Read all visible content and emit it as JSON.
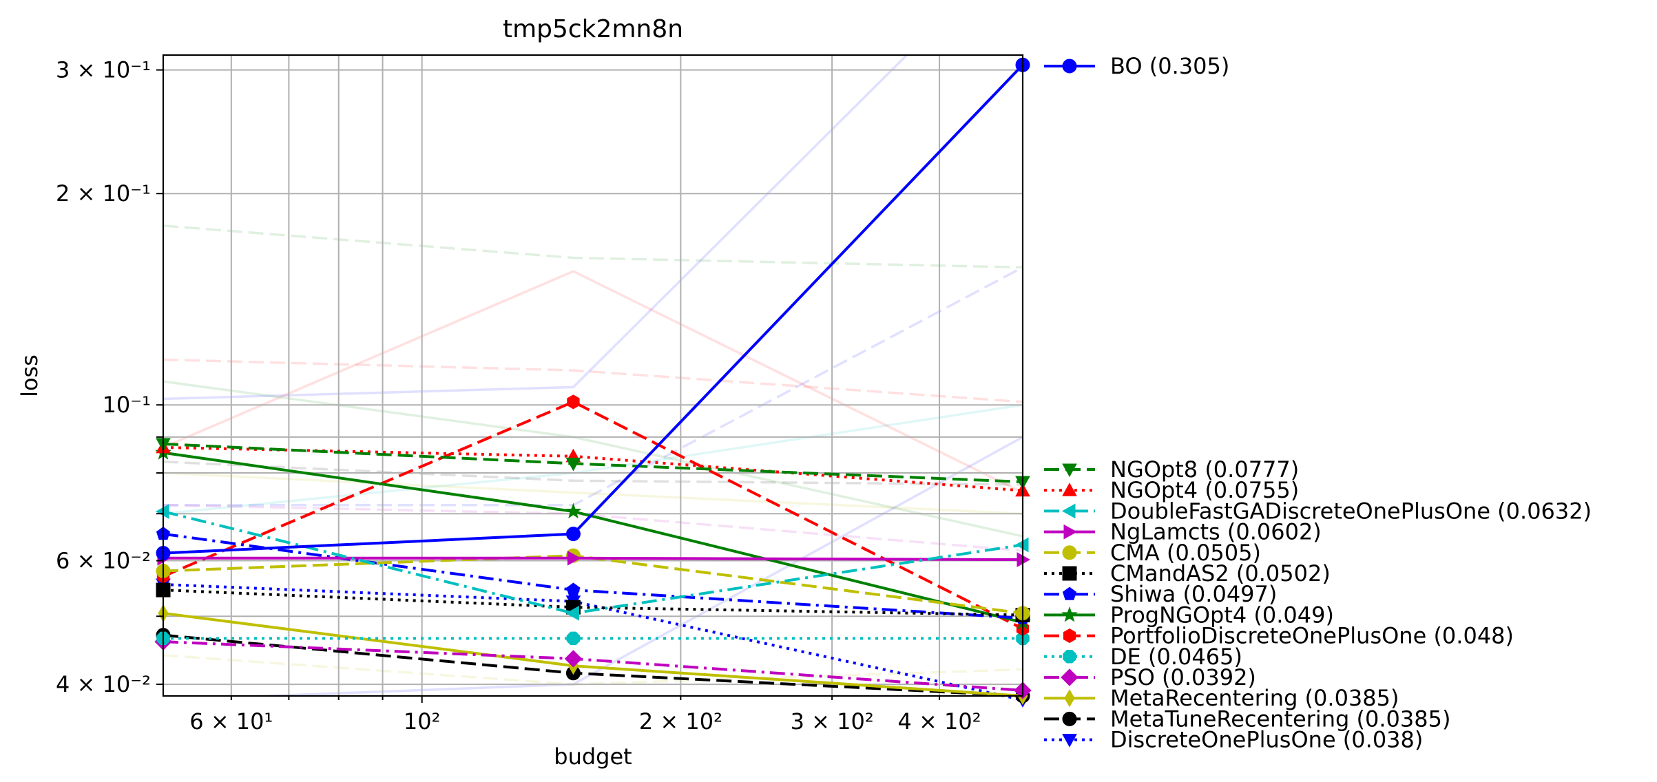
{
  "chart_data": {
    "type": "line",
    "title": "tmp5ck2mn8n",
    "xlabel": "budget",
    "ylabel": "loss",
    "xscale": "log",
    "yscale": "log",
    "xlim": [
      50,
      500
    ],
    "ylim": [
      0.0385,
      0.315
    ],
    "grid": true,
    "legend_position": "outside-right",
    "x_ticks": [
      {
        "value": 60,
        "label": "6 × 10¹"
      },
      {
        "value": 100,
        "label": "10²"
      },
      {
        "value": 200,
        "label": "2 × 10²"
      },
      {
        "value": 300,
        "label": "3 × 10²"
      },
      {
        "value": 400,
        "label": "4 × 10²"
      }
    ],
    "y_ticks": [
      {
        "value": 0.04,
        "label": "4 × 10⁻²"
      },
      {
        "value": 0.06,
        "label": "6 × 10⁻²"
      },
      {
        "value": 0.1,
        "label": "10⁻¹"
      },
      {
        "value": 0.2,
        "label": "2 × 10⁻¹"
      },
      {
        "value": 0.3,
        "label": "3 × 10⁻¹"
      }
    ],
    "x": [
      50,
      150,
      500
    ],
    "series": [
      {
        "name": "BO (0.305)",
        "color": "#0000ff",
        "dash": "solid",
        "marker": "circle",
        "values": [
          0.0615,
          0.0655,
          0.305
        ]
      },
      {
        "name": "NGOpt8 (0.0777)",
        "color": "#008000",
        "dash": "dashed",
        "marker": "triangle-down",
        "values": [
          0.088,
          0.0825,
          0.0777
        ]
      },
      {
        "name": "NGOpt4 (0.0755)",
        "color": "#ff0000",
        "dash": "dotted",
        "marker": "triangle-up",
        "values": [
          0.087,
          0.0845,
          0.0755
        ]
      },
      {
        "name": "DoubleFastGADiscreteOnePlusOne (0.0632)",
        "color": "#00bfbf",
        "dash": "dashdot",
        "marker": "triangle-left",
        "values": [
          0.0705,
          0.0505,
          0.0632
        ]
      },
      {
        "name": "NgLamcts (0.0602)",
        "color": "#bf00bf",
        "dash": "solid",
        "marker": "triangle-right",
        "values": [
          0.0605,
          0.0605,
          0.0602
        ]
      },
      {
        "name": "CMA (0.0505)",
        "color": "#bfbf00",
        "dash": "dashed",
        "marker": "circle",
        "values": [
          0.058,
          0.061,
          0.0505
        ]
      },
      {
        "name": "CMandAS2 (0.0502)",
        "color": "#000000",
        "dash": "dotted",
        "marker": "square",
        "values": [
          0.0545,
          0.0515,
          0.0502
        ]
      },
      {
        "name": "Shiwa (0.0497)",
        "color": "#0000ff",
        "dash": "dashdot",
        "marker": "pentagon",
        "values": [
          0.0655,
          0.0545,
          0.0497
        ]
      },
      {
        "name": "ProgNGOpt4 (0.049)",
        "color": "#008000",
        "dash": "solid",
        "marker": "star",
        "values": [
          0.0855,
          0.0705,
          0.049
        ]
      },
      {
        "name": "PortfolioDiscreteOnePlusOne (0.048)",
        "color": "#ff0000",
        "dash": "dashed",
        "marker": "hexagon",
        "values": [
          0.057,
          0.101,
          0.048
        ]
      },
      {
        "name": "DE (0.0465)",
        "color": "#00bfbf",
        "dash": "dotted",
        "marker": "octagon",
        "values": [
          0.0465,
          0.0465,
          0.0465
        ]
      },
      {
        "name": "PSO (0.0392)",
        "color": "#bf00bf",
        "dash": "dashdot",
        "marker": "diamond",
        "values": [
          0.046,
          0.0435,
          0.0392
        ]
      },
      {
        "name": "MetaRecentering (0.0385)",
        "color": "#bfbf00",
        "dash": "solid",
        "marker": "thin-diamond",
        "values": [
          0.0505,
          0.0425,
          0.0385
        ]
      },
      {
        "name": "MetaTuneRecentering (0.0385)",
        "color": "#000000",
        "dash": "dashed",
        "marker": "circle",
        "values": [
          0.047,
          0.0415,
          0.0385
        ]
      },
      {
        "name": "DiscreteOnePlusOne (0.038)",
        "color": "#0000ff",
        "dash": "dotted",
        "marker": "triangle-down",
        "values": [
          0.0555,
          0.0525,
          0.038
        ]
      }
    ]
  }
}
